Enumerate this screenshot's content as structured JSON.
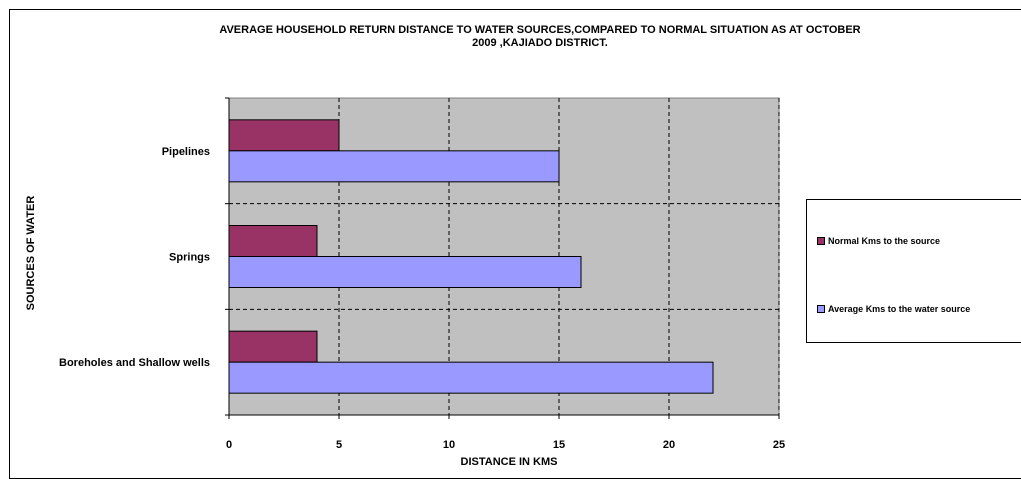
{
  "chart_data": {
    "type": "bar",
    "orientation": "horizontal",
    "title_line1": "AVERAGE HOUSEHOLD RETURN DISTANCE TO WATER SOURCES,COMPARED TO NORMAL SITUATION AS AT OCTOBER",
    "title_line2": "2009 ,KAJIADO DISTRICT.",
    "xlabel": "DISTANCE IN KMS",
    "ylabel": "SOURCES OF WATER",
    "categories": [
      "Pipelines",
      "Springs",
      "Boreholes and Shallow wells"
    ],
    "series": [
      {
        "name": "Normal Kms to the source",
        "color": "#993366",
        "values": [
          5,
          4,
          4
        ]
      },
      {
        "name": "Average Kms to the water source",
        "color": "#9999FF",
        "values": [
          15,
          16,
          22
        ]
      }
    ],
    "xlim": [
      0,
      25
    ],
    "x_ticks": [
      "0",
      "5",
      "10",
      "15",
      "20",
      "25"
    ],
    "grid": true,
    "plot_background": "#C0C0C0",
    "legend_position": "right"
  }
}
